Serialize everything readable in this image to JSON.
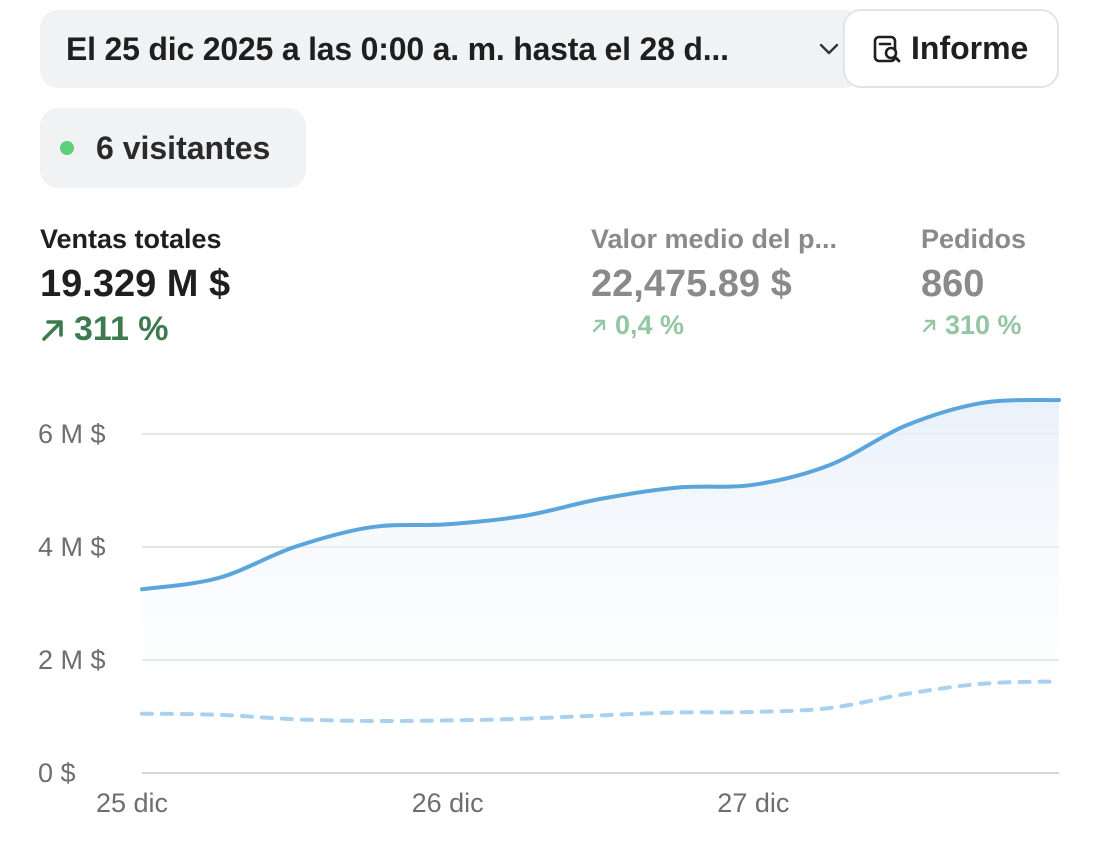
{
  "header": {
    "date_range": "El 25 dic 2025 a las 0:00 a. m. hasta el 28 d...",
    "report_label": "Informe"
  },
  "visitors": {
    "label": "6 visitantes",
    "dot_color": "#5cd07a"
  },
  "metrics": [
    {
      "label": "Ventas totales",
      "value": "19.329 M $",
      "change": "311 %",
      "trend": "up"
    },
    {
      "label": "Valor medio del p...",
      "value": "22,475.89 $",
      "change": "0,4 %",
      "trend": "up"
    },
    {
      "label": "Pedidos",
      "value": "860",
      "change": "310 %",
      "trend": "up"
    }
  ],
  "icons": [
    "chevron-down-icon",
    "report-search-icon",
    "arrow-up-right-icon"
  ],
  "chart_data": {
    "type": "line",
    "ytick_labels": [
      "0 $",
      "2 M $",
      "4 M $",
      "6 M $"
    ],
    "yticks": [
      0,
      2,
      4,
      6
    ],
    "ylim": [
      0,
      6.6
    ],
    "xtick_labels": [
      "25 dic",
      "26 dic",
      "27 dic"
    ],
    "xticks": [
      0,
      1,
      2
    ],
    "xlim": [
      0,
      3
    ],
    "grid": true,
    "series": [
      {
        "style": "solid",
        "color": "#5aa5dc",
        "x": [
          0,
          0.25,
          0.5,
          0.75,
          1.0,
          1.25,
          1.5,
          1.75,
          2.0,
          2.25,
          2.5,
          2.75,
          3.0
        ],
        "y": [
          3.25,
          3.45,
          4.0,
          4.35,
          4.4,
          4.55,
          4.85,
          5.05,
          5.1,
          5.45,
          6.15,
          6.55,
          6.6
        ]
      },
      {
        "style": "dashed",
        "color": "#a9d1ee",
        "x": [
          0,
          0.25,
          0.5,
          0.75,
          1.0,
          1.25,
          1.5,
          1.75,
          2.0,
          2.25,
          2.5,
          2.75,
          3.0
        ],
        "y": [
          1.05,
          1.03,
          0.95,
          0.92,
          0.93,
          0.96,
          1.02,
          1.07,
          1.08,
          1.15,
          1.4,
          1.58,
          1.62
        ]
      }
    ]
  }
}
